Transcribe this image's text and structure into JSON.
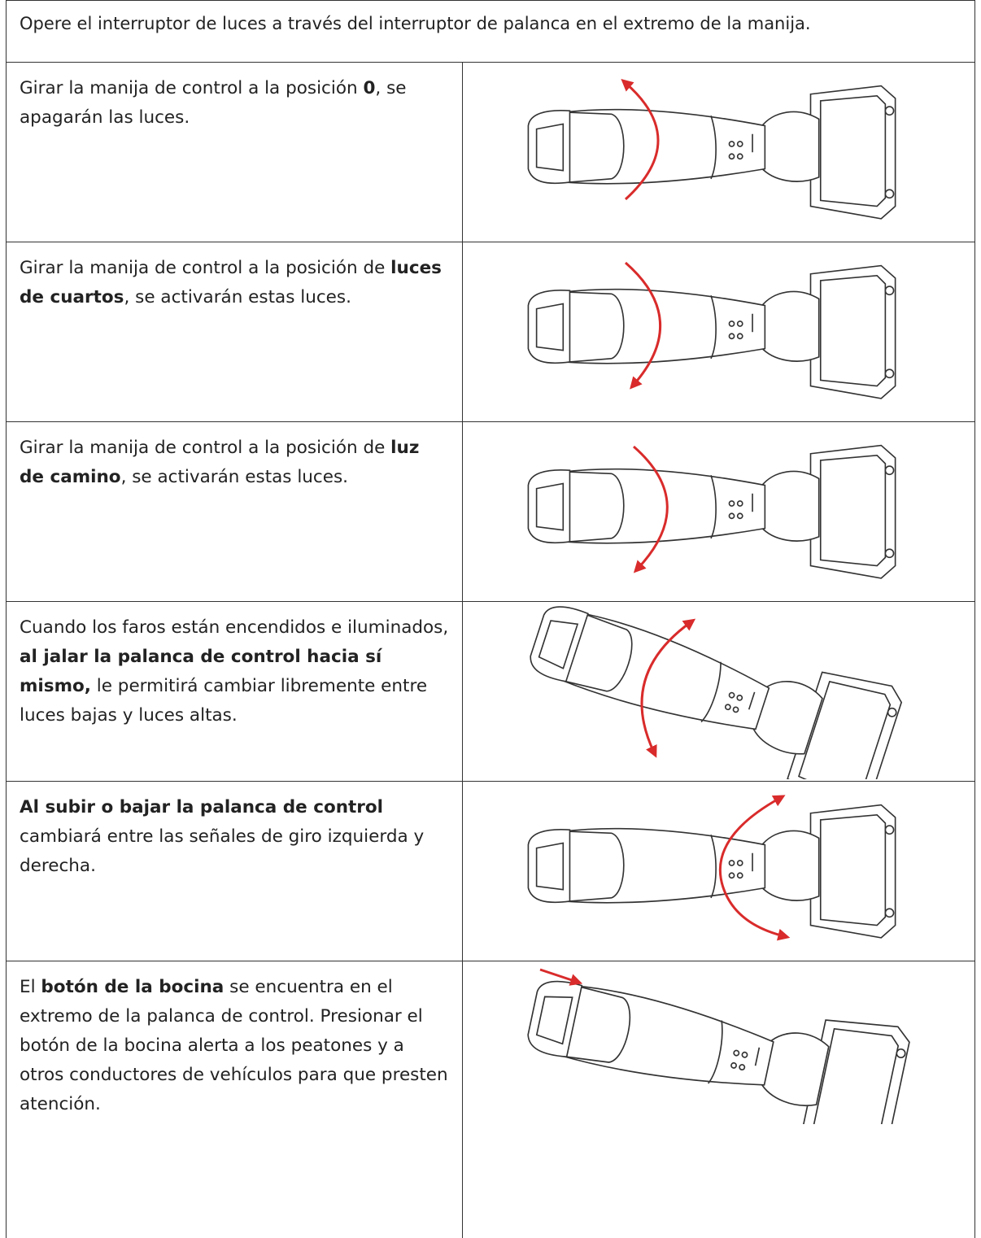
{
  "header": "Opere el interruptor de luces a través del interruptor de palanca en el extremo de la manija.",
  "rows": [
    {
      "runs": [
        {
          "text": "Girar la manija de control a la posición "
        },
        {
          "text": "0",
          "bold": true
        },
        {
          "text": ", se apagarán las luces."
        }
      ]
    },
    {
      "runs": [
        {
          "text": "Girar la manija de control a la posición de "
        },
        {
          "text": "luces de cuartos",
          "bold": true
        },
        {
          "text": ", se activarán estas luces."
        }
      ]
    },
    {
      "runs": [
        {
          "text": "Girar la manija de control a la posición de "
        },
        {
          "text": "luz de camino",
          "bold": true
        },
        {
          "text": ", se activarán estas luces."
        }
      ]
    },
    {
      "runs": [
        {
          "text": "Cuando los faros están encendidos e iluminados, "
        },
        {
          "text": "al jalar la palanca de control hacia sí mismo,",
          "bold": true
        },
        {
          "text": " le permitirá cambiar libremente entre luces bajas y luces altas."
        }
      ]
    },
    {
      "runs": [
        {
          "text": "Al subir o bajar la palanca de control",
          "bold": true
        },
        {
          "text": " cambiará entre las señales de giro izquierda y derecha."
        }
      ]
    },
    {
      "runs": [
        {
          "text": "El "
        },
        {
          "text": "botón de la bocina",
          "bold": true
        },
        {
          "text": " se encuentra en el extremo de la palanca de control. Presionar el botón de la bocina alerta a los peatones y a otros conductores de vehículos para que presten atención."
        }
      ]
    }
  ]
}
